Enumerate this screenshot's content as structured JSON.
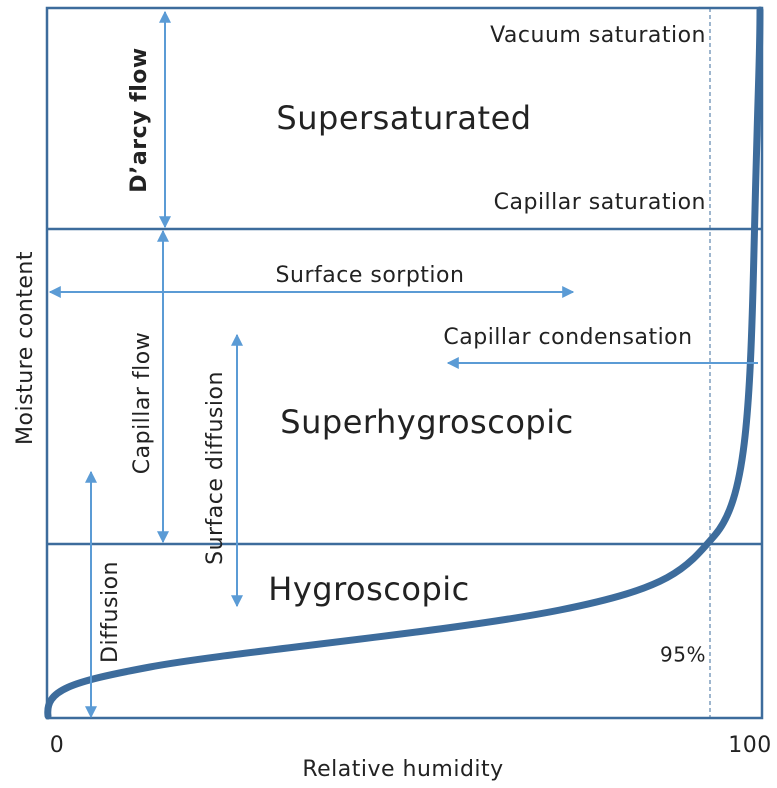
{
  "regions": {
    "supersaturated": "Supersaturated",
    "superhygroscopic": "Superhygroscopic",
    "hygroscopic": "Hygroscopic"
  },
  "levels": {
    "vacuum": "Vacuum saturation",
    "capillar": "Capillar saturation"
  },
  "arrows": {
    "darcy": "D’arcy flow",
    "capillar_flow": "Capillar flow",
    "surface_sorption": "Surface sorption",
    "capillar_condensation": "Capillar condensation",
    "surface_diffusion": "Surface diffusion",
    "diffusion": "Diffusion"
  },
  "axes": {
    "x_label": "Relative humidity",
    "y_label": "Moisture content",
    "x_min": "0",
    "x_max": "100",
    "marker": "95%"
  }
}
